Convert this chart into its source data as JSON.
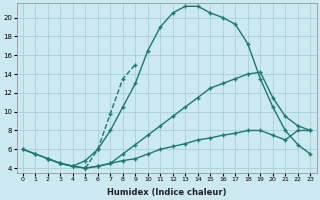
{
  "xlabel": "Humidex (Indice chaleur)",
  "bg_color": "#cce8f0",
  "grid_color": "#aacfdb",
  "line_color": "#1a7a6e",
  "xlim": [
    -0.5,
    23.5
  ],
  "ylim": [
    3.5,
    21.5
  ],
  "yticks": [
    4,
    6,
    8,
    10,
    12,
    14,
    16,
    18,
    20
  ],
  "xticks": [
    0,
    1,
    2,
    3,
    4,
    5,
    6,
    7,
    8,
    9,
    10,
    11,
    12,
    13,
    14,
    15,
    16,
    17,
    18,
    19,
    20,
    21,
    22,
    23
  ],
  "curve_upper_x": [
    2,
    3,
    4,
    5,
    6,
    7,
    8,
    9,
    10,
    11,
    12,
    13,
    14,
    15,
    16,
    17,
    18,
    19,
    20,
    21,
    22,
    23
  ],
  "curve_upper_y": [
    5.0,
    4.5,
    4.2,
    4.8,
    6.0,
    8.0,
    10.5,
    13.0,
    16.5,
    19.0,
    20.5,
    21.2,
    21.2,
    20.5,
    20.0,
    19.3,
    17.2,
    13.5,
    10.5,
    8.0,
    6.5,
    5.5
  ],
  "curve_mid_x": [
    0,
    1,
    2,
    3,
    4,
    5,
    6,
    7,
    8,
    9,
    10,
    11,
    12,
    13,
    14,
    15,
    16,
    17,
    18,
    19,
    20,
    21,
    22,
    23
  ],
  "curve_mid_y": [
    6.0,
    5.5,
    5.0,
    4.5,
    4.2,
    4.0,
    4.2,
    4.5,
    5.5,
    6.5,
    7.5,
    8.5,
    9.5,
    10.5,
    11.5,
    12.5,
    13.0,
    13.5,
    14.0,
    14.2,
    11.5,
    9.5,
    8.5,
    8.0
  ],
  "curve_low_x": [
    0,
    1,
    2,
    3,
    4,
    5,
    6,
    7,
    8,
    9,
    10,
    11,
    12,
    13,
    14,
    15,
    16,
    17,
    18,
    19,
    20,
    21,
    22,
    23
  ],
  "curve_low_y": [
    6.0,
    5.5,
    5.0,
    4.5,
    4.2,
    4.0,
    4.2,
    4.5,
    4.8,
    5.0,
    5.5,
    6.0,
    6.3,
    6.6,
    7.0,
    7.2,
    7.5,
    7.7,
    8.0,
    8.0,
    7.5,
    7.0,
    8.0,
    8.0
  ],
  "curve_steep_x": [
    5,
    6,
    7,
    8,
    9
  ],
  "curve_steep_y": [
    4.0,
    6.0,
    9.8,
    13.5,
    15.0
  ]
}
